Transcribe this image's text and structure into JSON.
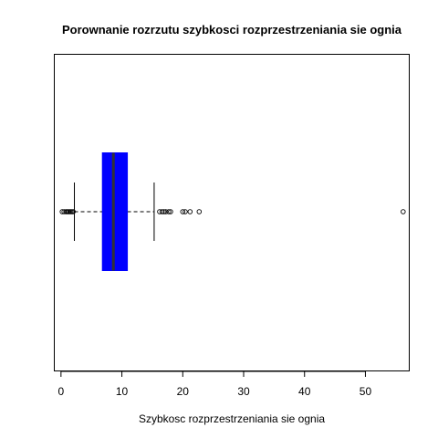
{
  "chart_data": {
    "type": "boxplot",
    "orientation": "horizontal",
    "title": "Porownanie rozrzutu szybkosci rozprzestrzeniania sie ognia",
    "xlabel": "Szybkosc rozprzestrzeniania sie ognia",
    "ylabel": "",
    "xlim": [
      -1.1,
      57.2
    ],
    "xticks": [
      0,
      10,
      20,
      30,
      40,
      50
    ],
    "xtick_labels": [
      "0",
      "10",
      "20",
      "30",
      "40",
      "50"
    ],
    "grid": false,
    "box": {
      "whisker_low": 2.2,
      "q1": 6.8,
      "median": 8.6,
      "q3": 10.9,
      "whisker_high": 15.3,
      "fill_color": "#0000ff",
      "median_color": "#333333"
    },
    "outliers": [
      0.2,
      0.5,
      0.8,
      1.0,
      1.2,
      1.4,
      1.6,
      1.8,
      2.0,
      16.2,
      16.6,
      16.9,
      17.2,
      17.7,
      18.0,
      20.0,
      20.4,
      21.2,
      22.7,
      56.2
    ]
  }
}
